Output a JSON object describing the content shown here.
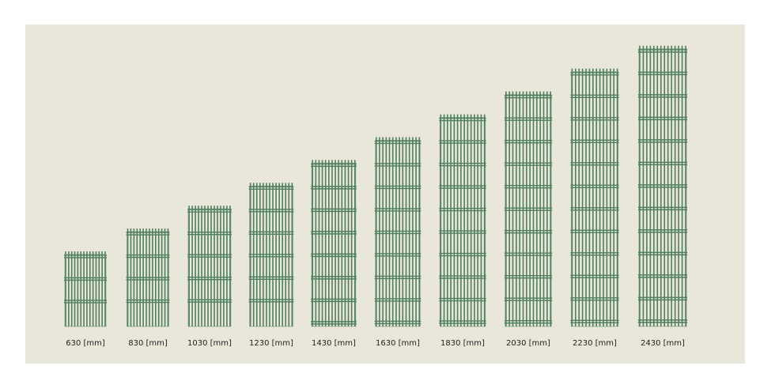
{
  "chart_data": {
    "type": "fence",
    "values": [
      630,
      830,
      1030,
      1230,
      1430,
      1630,
      1830,
      2030,
      2230,
      2430
    ],
    "value_labels": [
      "630 [mm]",
      "830 [mm]",
      "1030 [mm]",
      "1230 [mm]",
      "1430 [mm]",
      "1630 [mm]",
      "1830 [mm]",
      "2030 [mm]",
      "2230 [mm]",
      "2430 [mm]"
    ],
    "color": "#4f7f5c"
  }
}
